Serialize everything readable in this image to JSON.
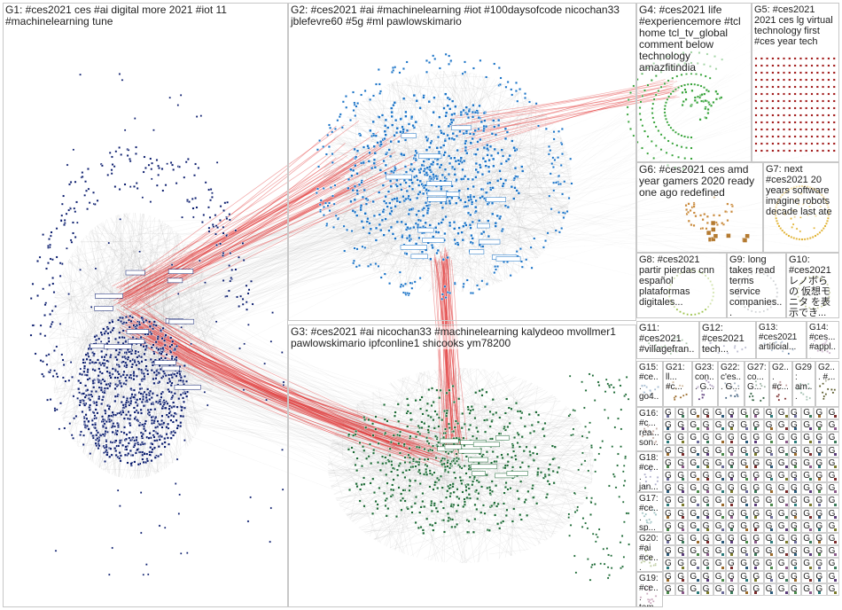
{
  "groups": [
    {
      "id": "G1",
      "label": "G1: #ces2021 ces #ai digital more 2021 #iot 11 #machinelearning tune",
      "color": "#0b1d6e"
    },
    {
      "id": "G2",
      "label": "G2: #ces2021 #ai #machinelearning #iot #100daysofcode nicochan33 jblefevre60 #5g #ml pawlowskimario",
      "color": "#1a73c7"
    },
    {
      "id": "G3",
      "label": "G3: #ces2021 #ai nicochan33 #machinelearning kalydeoo mvollmer1 pawlowskimario ipfconline1 shicooks ym78200",
      "color": "#1c6a35"
    },
    {
      "id": "G4",
      "label": "G4: #ces2021 life #experiencemore #tcl home tcl_tv_global comment below technology amazfitindia",
      "color": "#37a33a"
    },
    {
      "id": "G5",
      "label": "G5: #ces2021 2021 ces lg virtual technology first #ces year tech",
      "color": "#a31e1e"
    },
    {
      "id": "G6",
      "label": "G6: #ces2021 ces amd year gamers 2020 ready one ago redefined",
      "color": "#c98a3c"
    },
    {
      "id": "G7",
      "label": "G7: next #ces2021 20 years software imagine robots decade last ate",
      "color": "#e2b53a"
    },
    {
      "id": "G8",
      "label": "G8: #ces2021 partir pierdas cnn español plataformas digitales...",
      "color": "#9bc24a"
    },
    {
      "id": "G9",
      "label": "G9: long takes read terms service companies...",
      "color": "#7a7a7a"
    },
    {
      "id": "G10",
      "label": "G10: #ces2021 レノボらの 仮想モニタ を表示でき...",
      "color": "#8a9a3a"
    },
    {
      "id": "G11",
      "label": "G11: #ces2021 #villagefran...",
      "color": "#4a8a4a"
    },
    {
      "id": "G12",
      "label": "G12: #ces2021 tech...",
      "color": "#6a6a9a"
    },
    {
      "id": "G13",
      "label": "G13: #ces2021 artificial...",
      "color": "#5a7aa0"
    },
    {
      "id": "G14",
      "label": "G14: #ces... #appl...",
      "color": "#8a5a8a"
    },
    {
      "id": "G15",
      "label": "G15: #ce... go4...",
      "color": "#3a6a9a"
    },
    {
      "id": "G16",
      "label": "G16: #c... rea... son...",
      "color": "#7a4a3a"
    },
    {
      "id": "G17",
      "label": "G17: #ce... sp... ppg...",
      "color": "#2a7a7a"
    },
    {
      "id": "G18",
      "label": "G18: #ce... jan...",
      "color": "#4a4a8a"
    },
    {
      "id": "G19",
      "label": "G19: #ce... tem...",
      "color": "#8a3a6a"
    },
    {
      "id": "G20",
      "label": "G20: #ai #ce... bo...",
      "color": "#6a8a2a"
    },
    {
      "id": "G21",
      "label": "G21: ll... #c...",
      "color": "#9a6a2a"
    },
    {
      "id": "G22",
      "label": "G22: c'es... G...",
      "color": "#3a5a7a"
    },
    {
      "id": "G23",
      "label": "G23: con... G...",
      "color": "#5a3a7a"
    },
    {
      "id": "G27",
      "label": "G27: co... G...",
      "color": "#2a5a3a"
    },
    {
      "id": "G28",
      "label": "G2... #c...",
      "color": "#7a2a2a"
    },
    {
      "id": "G29",
      "label": "G29: am...",
      "color": "#3a7a5a"
    },
    {
      "id": "G30",
      "label": "G2... #...",
      "color": "#5a5a2a"
    }
  ],
  "small_group_glyph": "G"
}
